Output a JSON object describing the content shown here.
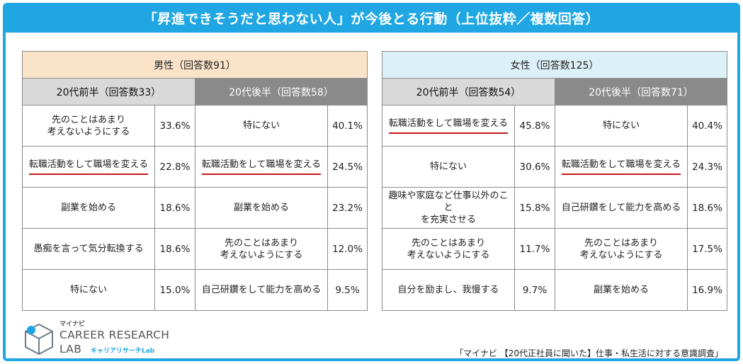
{
  "title": "「昇進できそうだと思わない人」が今後とる行動（上位抜粋／複数回答）",
  "male": {
    "header": "男性（回答数91）",
    "group1": {
      "header": "20代前半（回答数33）",
      "rows": [
        {
          "label": "先のことはあまり\n考えないようにする",
          "value": "33.6%"
        },
        {
          "label": "転職活動をして職場を変える",
          "value": "22.8%"
        },
        {
          "label": "副業を始める",
          "value": "18.6%"
        },
        {
          "label": "愚痴を言って気分転換する",
          "value": "18.6%"
        },
        {
          "label": "特にない",
          "value": "15.0%"
        }
      ]
    },
    "group2": {
      "header": "20代後半（回答数58）",
      "rows": [
        {
          "label": "特にない",
          "value": "40.1%"
        },
        {
          "label": "転職活動をして職場を変える",
          "value": "24.5%"
        },
        {
          "label": "副業を始める",
          "value": "23.2%"
        },
        {
          "label": "先のことはあまり\n考えないようにする",
          "value": "12.0%"
        },
        {
          "label": "自己研鑽をして能力を高める",
          "value": "9.5%"
        }
      ]
    }
  },
  "female": {
    "header": "女性（回答数125）",
    "group1": {
      "header": "20代前半（回答数54）",
      "rows": [
        {
          "label": "転職活動をして職場を変える",
          "value": "45.8%"
        },
        {
          "label": "特にない",
          "value": "30.6%"
        },
        {
          "label": "趣味や家庭など仕事以外のこと\nを充実させる",
          "value": "15.8%"
        },
        {
          "label": "先のことはあまり\n考えないようにする",
          "value": "11.7%"
        },
        {
          "label": "自分を励まし、我慢する",
          "value": "9.7%"
        }
      ]
    },
    "group2": {
      "header": "20代後半（回答数71）",
      "rows": [
        {
          "label": "特にない",
          "value": "40.4%"
        },
        {
          "label": "転職活動をして職場を変える",
          "value": "24.3%"
        },
        {
          "label": "自己研鑽をして能力を高める",
          "value": "18.6%"
        },
        {
          "label": "先のことはあまり\n考えないようにする",
          "value": "17.5%"
        },
        {
          "label": "副業を始める",
          "value": "16.9%"
        }
      ]
    }
  },
  "logo": {
    "ja": "マイナビ",
    "line1": "CAREER RESEARCH",
    "line2": "LAB",
    "sub": "キャリアリサーチLab"
  },
  "source": "「マイナビ 【20代正社員に聞いた】仕事・私生活に対する意識調査」",
  "colors": {
    "accent": "#20a7e3",
    "male_header": "#fae3c9",
    "female_header": "#dcf0f8",
    "age_first": "#d9d9d9",
    "age_second": "#8a8a8a",
    "highlight_underline": "#c6171c"
  },
  "chart_data": {
    "type": "table",
    "title": "「昇進できそうだと思わない人」が今後とる行動（上位抜粋／複数回答）",
    "groups": [
      {
        "name": "男性 20代前半（回答数33）",
        "items": [
          "先のことはあまり考えないようにする",
          "転職活動をして職場を変える",
          "副業を始める",
          "愚痴を言って気分転換する",
          "特にない"
        ],
        "values": [
          33.6,
          22.8,
          18.6,
          18.6,
          15.0
        ]
      },
      {
        "name": "男性 20代後半（回答数58）",
        "items": [
          "特にない",
          "転職活動をして職場を変える",
          "副業を始める",
          "先のことはあまり考えないようにする",
          "自己研鑽をして能力を高める"
        ],
        "values": [
          40.1,
          24.5,
          23.2,
          12.0,
          9.5
        ]
      },
      {
        "name": "女性 20代前半（回答数54）",
        "items": [
          "転職活動をして職場を変える",
          "特にない",
          "趣味や家庭など仕事以外のことを充実させる",
          "先のことはあまり考えないようにする",
          "自分を励まし、我慢する"
        ],
        "values": [
          45.8,
          30.6,
          15.8,
          11.7,
          9.7
        ]
      },
      {
        "name": "女性 20代後半（回答数71）",
        "items": [
          "特にない",
          "転職活動をして職場を変える",
          "自己研鑽をして能力を高める",
          "先のことはあまり考えないようにする",
          "副業を始める"
        ],
        "values": [
          40.4,
          24.3,
          18.6,
          17.5,
          16.9
        ]
      }
    ],
    "highlight": "転職活動をして職場を変える",
    "unit": "%"
  }
}
